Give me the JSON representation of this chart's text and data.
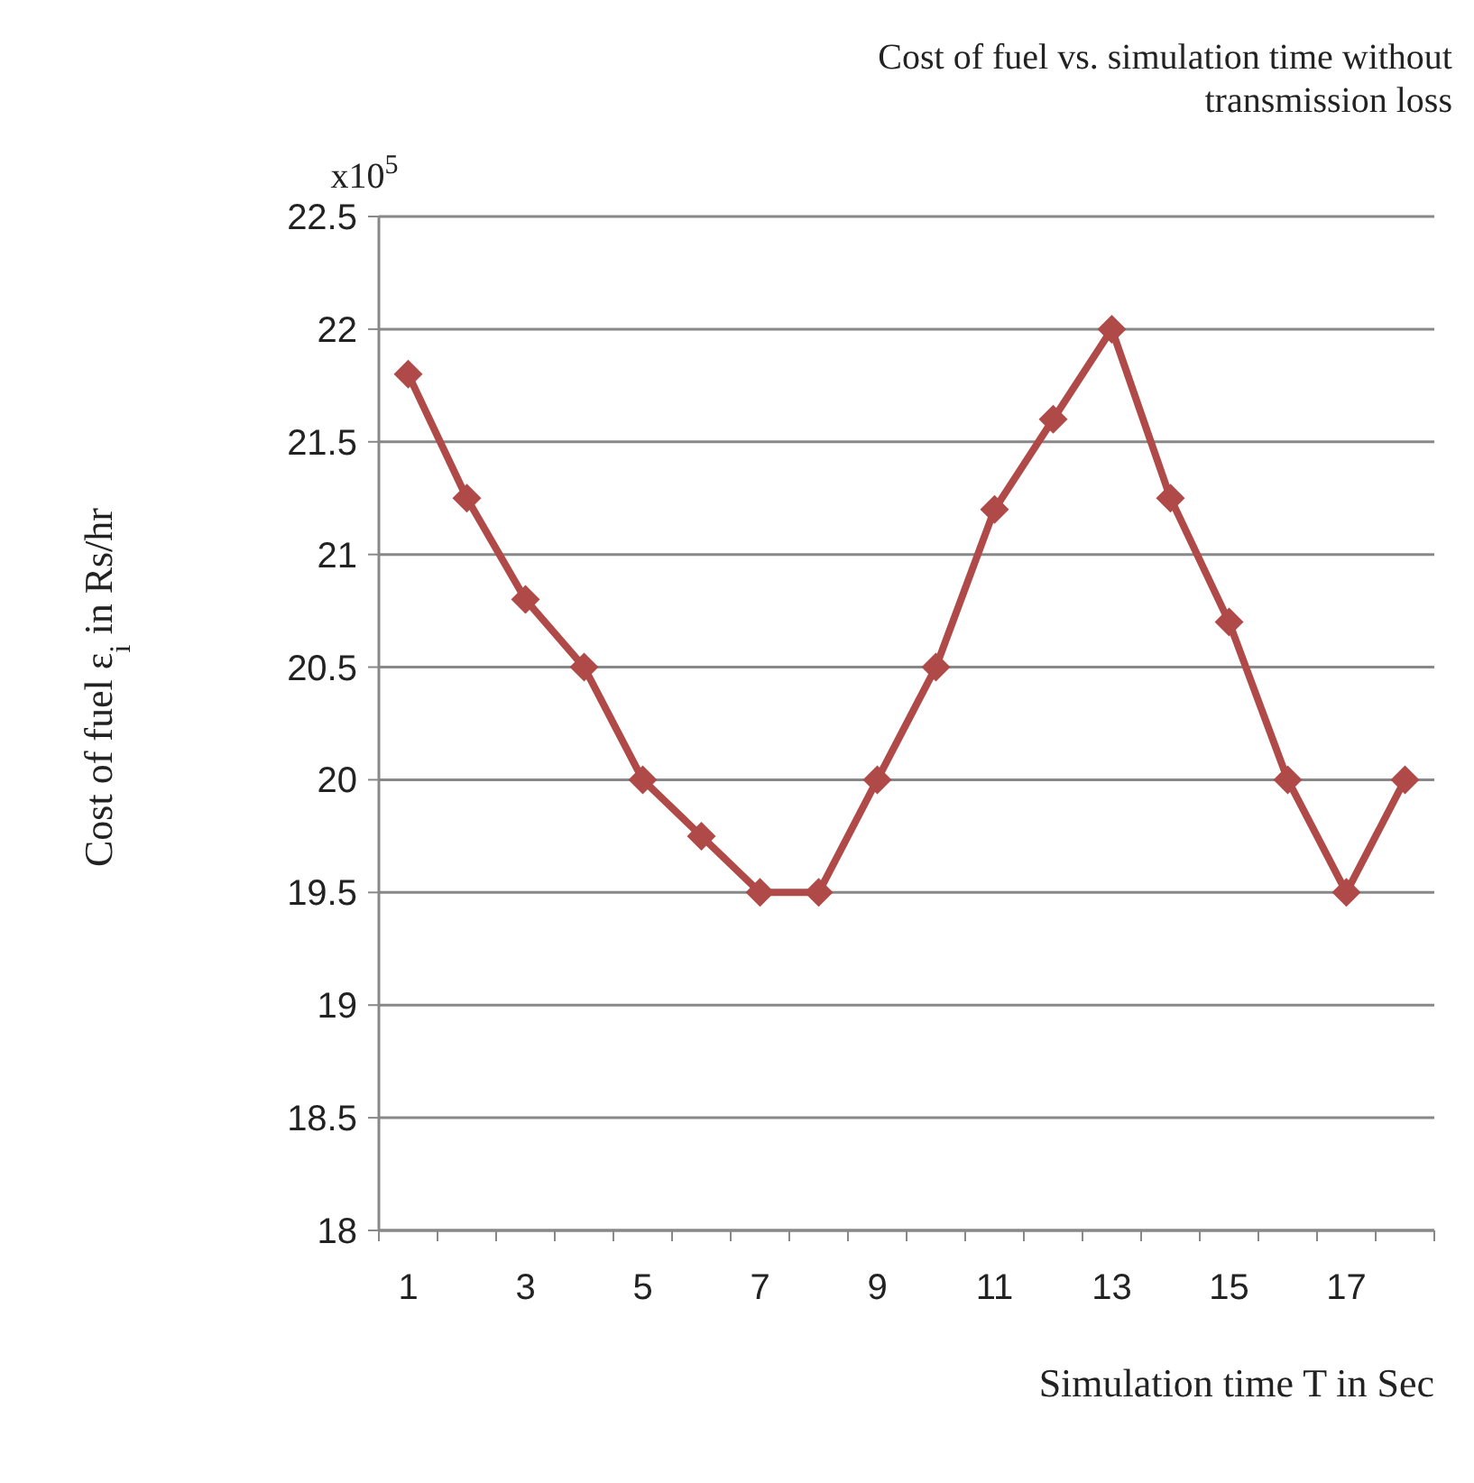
{
  "chart_data": {
    "type": "line",
    "title": "Cost of fuel vs. simulation time without transmission loss",
    "xlabel": "Simulation time T in Sec",
    "ylabel": "Cost of fuel ε$_{i}$ in Rs/hr",
    "annotations": [
      "x10$^{5}$"
    ],
    "x": [
      1,
      2,
      3,
      4,
      5,
      6,
      7,
      8,
      9,
      10,
      11,
      12,
      13,
      14,
      15,
      16,
      17,
      18
    ],
    "series": [
      {
        "color": "#b04a48",
        "values": [
          21.8,
          21.25,
          20.8,
          20.5,
          20.0,
          19.75,
          19.5,
          19.5,
          20.0,
          20.5,
          21.2,
          21.6,
          22.0,
          21.25,
          20.7,
          20.0,
          19.5,
          20.0
        ]
      }
    ],
    "xlim": [
      0.5,
      18.5
    ],
    "xticks": [
      {
        "value": 0.5,
        "label": null
      },
      1,
      {
        "value": 1.5,
        "label": null
      },
      {
        "value": 2.5,
        "label": null
      },
      3,
      {
        "value": 3.5,
        "label": null
      },
      {
        "value": 4.5,
        "label": null
      },
      5,
      {
        "value": 5.5,
        "label": null
      },
      {
        "value": 6.5,
        "label": null
      },
      7,
      {
        "value": 7.5,
        "label": null
      },
      {
        "value": 8.5,
        "label": null
      },
      9,
      {
        "value": 9.5,
        "label": null
      },
      {
        "value": 10.5,
        "label": null
      },
      11,
      {
        "value": 11.5,
        "label": null
      },
      {
        "value": 12.5,
        "label": null
      },
      13,
      {
        "value": 13.5,
        "label": null
      },
      {
        "value": 14.5,
        "label": null
      },
      15,
      {
        "value": 15.5,
        "label": null
      },
      {
        "value": 16.5,
        "label": null
      },
      17,
      {
        "value": 17.5,
        "label": null
      },
      {
        "value": 18.5,
        "label": null
      }
    ],
    "ylim": [
      18,
      22.5
    ],
    "yticks": [
      18,
      18.5,
      19,
      19.5,
      20,
      20.5,
      21,
      21.5,
      22,
      22.5
    ],
    "grid": "y",
    "marker": "diamond",
    "line_style": "solid"
  }
}
